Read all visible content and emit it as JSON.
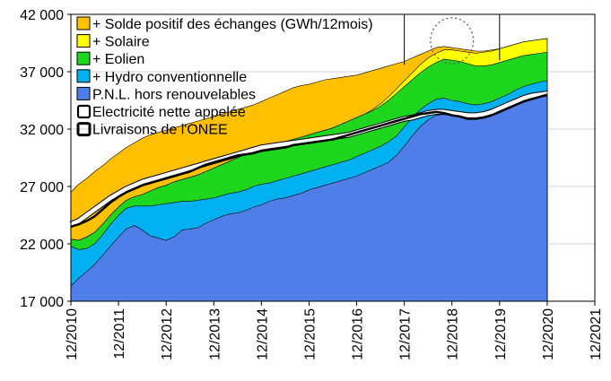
{
  "chart_data": {
    "type": "area",
    "x": [
      2010.917,
      2011.083,
      2011.25,
      2011.417,
      2011.583,
      2011.75,
      2011.917,
      2012.083,
      2012.25,
      2012.417,
      2012.583,
      2012.75,
      2012.917,
      2013.083,
      2013.25,
      2013.417,
      2013.583,
      2013.75,
      2013.917,
      2014.083,
      2014.25,
      2014.417,
      2014.583,
      2014.75,
      2014.917,
      2015.083,
      2015.25,
      2015.417,
      2015.583,
      2015.75,
      2015.917,
      2016.083,
      2016.25,
      2016.417,
      2016.583,
      2016.75,
      2016.917,
      2017.083,
      2017.25,
      2017.417,
      2017.583,
      2017.75,
      2017.917,
      2018.083,
      2018.25,
      2018.417,
      2018.583,
      2018.75,
      2018.917,
      2019.083,
      2019.25,
      2019.417,
      2019.583,
      2019.75,
      2019.917,
      2020.083,
      2020.25,
      2020.417,
      2020.583,
      2020.75,
      2020.917
    ],
    "ylim": [
      17000,
      42000
    ],
    "xlim": [
      2010.917,
      2021.917
    ],
    "y_ticks": [
      {
        "value": 17000,
        "label": "17 000"
      },
      {
        "value": 22000,
        "label": "22 000"
      },
      {
        "value": 27000,
        "label": "27 000"
      },
      {
        "value": 32000,
        "label": "32 000"
      },
      {
        "value": 37000,
        "label": "37 000"
      },
      {
        "value": 42000,
        "label": "42 000"
      }
    ],
    "x_ticks": [
      {
        "value": 2010.917,
        "label": "12/2010"
      },
      {
        "value": 2011.917,
        "label": "12/2011"
      },
      {
        "value": 2012.917,
        "label": "12/2012"
      },
      {
        "value": 2013.917,
        "label": "12/2013"
      },
      {
        "value": 2014.917,
        "label": "12/2014"
      },
      {
        "value": 2015.917,
        "label": "12/2015"
      },
      {
        "value": 2016.917,
        "label": "12/2016"
      },
      {
        "value": 2017.917,
        "label": "12/2017"
      },
      {
        "value": 2018.917,
        "label": "12/2018"
      },
      {
        "value": 2019.917,
        "label": "12/2019"
      },
      {
        "value": 2020.917,
        "label": "12/2020"
      },
      {
        "value": 2021.917,
        "label": "12/2021"
      }
    ],
    "legend_position": "top-left",
    "stacked_series": [
      {
        "name": "P.N.L. hors renouvelables",
        "color": "#4f7ee8",
        "values": [
          18300,
          19000,
          19600,
          20200,
          21000,
          21800,
          22600,
          23300,
          23600,
          23200,
          22700,
          22500,
          22300,
          22600,
          23200,
          23300,
          23400,
          23800,
          24100,
          24400,
          24600,
          24700,
          24900,
          25200,
          25400,
          25700,
          25900,
          26000,
          26200,
          26400,
          26700,
          26900,
          27100,
          27300,
          27500,
          27700,
          27900,
          28200,
          28500,
          28800,
          29100,
          29700,
          30500,
          31400,
          32200,
          32800,
          33200,
          33300,
          33200,
          33200,
          33100,
          33000,
          33200,
          33500,
          33800,
          34100,
          34500,
          34800,
          35000,
          35200,
          35300
        ]
      },
      {
        "name": "Hydro conventionnelle",
        "color": "#00b0f0",
        "values": [
          21800,
          21500,
          21600,
          22000,
          22800,
          23700,
          24500,
          25100,
          25300,
          25300,
          25300,
          25400,
          25500,
          25600,
          25700,
          25700,
          25800,
          25900,
          26000,
          26200,
          26400,
          26500,
          26700,
          27000,
          27200,
          27300,
          27500,
          27700,
          27900,
          28100,
          28300,
          28500,
          28700,
          28900,
          29100,
          29300,
          29600,
          29900,
          30200,
          30500,
          30900,
          31400,
          32200,
          33000,
          33700,
          34200,
          34600,
          34700,
          34500,
          34400,
          34200,
          34100,
          34200,
          34400,
          34700,
          35000,
          35400,
          35700,
          35900,
          36100,
          36200
        ]
      },
      {
        "name": "Eolien",
        "color": "#1fd61f",
        "values": [
          22400,
          22300,
          22600,
          23000,
          23700,
          24500,
          25200,
          25800,
          26100,
          26300,
          26600,
          26900,
          27100,
          27400,
          27600,
          27800,
          28000,
          28300,
          28600,
          28900,
          29200,
          29500,
          29800,
          30200,
          30400,
          30600,
          30700,
          30900,
          31100,
          31300,
          31500,
          31700,
          31900,
          32100,
          32400,
          32700,
          33000,
          33300,
          33600,
          34000,
          34500,
          35100,
          35700,
          36300,
          36900,
          37400,
          37800,
          38100,
          38000,
          37900,
          37700,
          37500,
          37500,
          37600,
          37800,
          38000,
          38200,
          38400,
          38500,
          38600,
          38700
        ]
      },
      {
        "name": "Solaire",
        "color": "#ffff00",
        "values": [
          22400,
          22300,
          22600,
          23000,
          23700,
          24500,
          25200,
          25800,
          26100,
          26300,
          26600,
          26900,
          27100,
          27400,
          27600,
          27800,
          28000,
          28300,
          28600,
          28900,
          29200,
          29500,
          29800,
          30200,
          30400,
          30600,
          30700,
          30900,
          31100,
          31300,
          31500,
          31700,
          31900,
          32100,
          32400,
          32700,
          33000,
          33300,
          33700,
          34200,
          34800,
          35500,
          36200,
          36900,
          37600,
          38200,
          38600,
          38900,
          38900,
          38800,
          38700,
          38600,
          38700,
          38800,
          39000,
          39200,
          39400,
          39600,
          39700,
          39800,
          39900
        ]
      },
      {
        "name": "Solde positif des échanges (GWh/12mois)",
        "color": "#ffc000",
        "values": [
          26500,
          27200,
          27700,
          28300,
          28800,
          29400,
          29900,
          30400,
          30800,
          31200,
          31500,
          31700,
          31900,
          32100,
          32300,
          32500,
          32700,
          32900,
          33100,
          33300,
          33500,
          33700,
          33900,
          34100,
          34400,
          34700,
          35000,
          35300,
          35600,
          35800,
          35900,
          36100,
          36300,
          36400,
          36500,
          36600,
          36700,
          36900,
          37100,
          37300,
          37500,
          37700,
          37900,
          38200,
          38500,
          38800,
          39100,
          39200,
          39100,
          39000,
          38900,
          38800,
          38800,
          38900,
          39000,
          39200,
          39400,
          39600,
          39700,
          39800,
          39900
        ]
      }
    ],
    "line_series": [
      {
        "name": "Electricité nette appelée",
        "color": "#ffffff",
        "width": 4.5,
        "casing": "#000000",
        "values": [
          23700,
          24000,
          24500,
          25000,
          25500,
          26000,
          26400,
          26800,
          27100,
          27400,
          27600,
          27800,
          28000,
          28200,
          28400,
          28600,
          28800,
          29000,
          29200,
          29400,
          29600,
          29800,
          30000,
          30200,
          30400,
          30500,
          30600,
          30700,
          30800,
          30900,
          31000,
          31100,
          31200,
          31300,
          31400,
          31500,
          31700,
          31900,
          32100,
          32300,
          32500,
          32700,
          32900,
          33000,
          33200,
          33400,
          33500,
          33500,
          33400,
          33300,
          33200,
          33200,
          33300,
          33500,
          33800,
          34100,
          34400,
          34700,
          34900,
          35000,
          35100
        ]
      },
      {
        "name": "Livraisons de l'ONEE",
        "color": "#000000",
        "width": 2.5,
        "values": [
          23500,
          23700,
          24000,
          24400,
          25000,
          25600,
          26100,
          26500,
          26800,
          27100,
          27300,
          27500,
          27700,
          27900,
          28100,
          28300,
          28600,
          28900,
          29100,
          29300,
          29500,
          29700,
          29800,
          29900,
          30100,
          30200,
          30300,
          30400,
          30600,
          30700,
          30800,
          30900,
          31000,
          31100,
          31300,
          31500,
          31700,
          31900,
          32100,
          32300,
          32500,
          32700,
          32900,
          33100,
          33300,
          33400,
          33500,
          33400,
          33200,
          33100,
          32900,
          32900,
          33000,
          33200,
          33500,
          33800,
          34100,
          34400,
          34600,
          34800,
          35000
        ]
      }
    ],
    "legend_entries": [
      {
        "label": "+ Solde positif des échanges (GWh/12mois)",
        "color": "#ffc000",
        "kind": "box"
      },
      {
        "label": "+ Solaire",
        "color": "#ffff00",
        "kind": "box"
      },
      {
        "label": "+ Eolien",
        "color": "#1fd61f",
        "kind": "box"
      },
      {
        "label": "+ Hydro conventionnelle",
        "color": "#00b0f0",
        "kind": "box"
      },
      {
        "label": "P.N.L. hors renouvelables",
        "color": "#4f7ee8",
        "kind": "box"
      },
      {
        "label": "Electricité nette appelée",
        "color": "#ffffff",
        "kind": "hollow"
      },
      {
        "label": "Livraisons de l'ONEE",
        "color": "#000000",
        "kind": "line"
      }
    ],
    "annotations": [
      {
        "kind": "vline",
        "x": 2017.917,
        "y_from": 37600,
        "y_to": 42000
      },
      {
        "kind": "vline",
        "x": 2019.917,
        "y_from": 38000,
        "y_to": 42000
      },
      {
        "kind": "dotted-circle",
        "x": 2018.917,
        "y": 39700,
        "dx": 0.45,
        "dy": 2000
      }
    ]
  }
}
